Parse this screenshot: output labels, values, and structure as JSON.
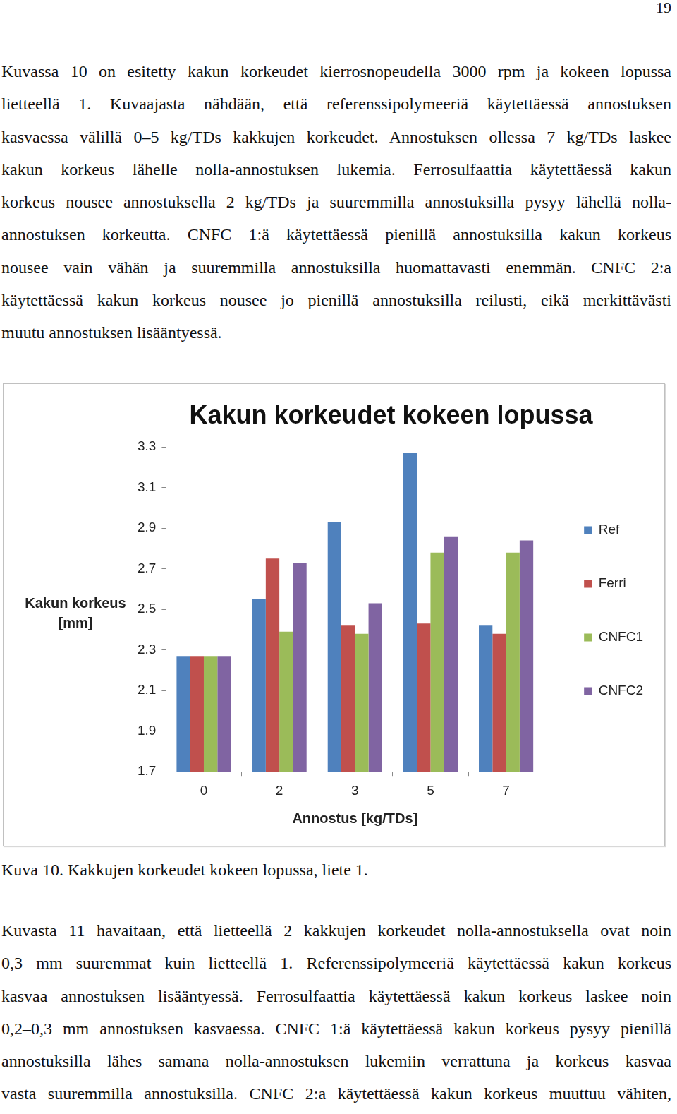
{
  "page_number": "19",
  "text_before": [
    "Kuvassa 10 on esitetty kakun korkeudet kierrosnopeudella 3000 rpm ja kokeen lopussa",
    "lietteellä 1. Kuvaajasta nähdään, että referenssipolymeeriä käytettäessä annostuksen",
    "kasvaessa välillä 0–5 kg/TDs kakkujen korkeudet. Annostuksen ollessa 7 kg/TDs laskee",
    "kakun korkeus lähelle nolla-annostuksen lukemia. Ferrosulfaattia käytettäessä kakun",
    "korkeus nousee annostuksella 2 kg/TDs ja suuremmilla annostuksilla pysyy lähellä nolla-",
    "annostuksen korkeutta. CNFC 1:ä käytettäessä pienillä annostuksilla kakun korkeus",
    "nousee vain vähän ja suuremmilla annostuksilla huomattavasti enemmän. CNFC 2:a",
    "käytettäessä kakun korkeus nousee jo pienillä annostuksilla reilusti, eikä merkittävästi",
    "muutu annostuksen lisääntyessä."
  ],
  "chart_data": {
    "type": "bar",
    "title": "Kakun korkeudet kokeen lopussa",
    "x_label": "Annostus [kg/TDs]",
    "y_label": "Kakun korkeus [mm]",
    "categories": [
      "0",
      "2",
      "3",
      "5",
      "7"
    ],
    "series": [
      {
        "name": "Ref",
        "color": "#4f81bd",
        "values": [
          2.27,
          2.55,
          2.93,
          3.27,
          2.42
        ]
      },
      {
        "name": "Ferri",
        "color": "#c0504d",
        "values": [
          2.27,
          2.75,
          2.42,
          2.43,
          2.38
        ]
      },
      {
        "name": "CNFC1",
        "color": "#9bbb59",
        "values": [
          2.27,
          2.39,
          2.38,
          2.78,
          2.78
        ]
      },
      {
        "name": "CNFC2",
        "color": "#8064a2",
        "values": [
          2.27,
          2.73,
          2.53,
          2.86,
          2.84
        ]
      }
    ],
    "ylim": [
      1.7,
      3.3
    ],
    "yticks": [
      1.7,
      1.9,
      2.1,
      2.3,
      2.5,
      2.7,
      2.9,
      3.1,
      3.3
    ],
    "grid": false,
    "legend": "right"
  },
  "caption": "Kuva 10. Kakkujen korkeudet kokeen lopussa, liete 1.",
  "text_after": [
    "Kuvasta 11 havaitaan, että lietteellä 2 kakkujen korkeudet nolla-annostuksella ovat noin",
    "0,3 mm suuremmat kuin lietteellä 1. Referenssipolymeeriä käytettäessä kakun korkeus",
    "kasvaa annostuksen lisääntyessä. Ferrosulfaattia käytettäessä kakun korkeus laskee noin",
    "0,2–0,3 mm annostuksen kasvaessa. CNFC 1:ä käytettäessä kakun korkeus pysyy pienillä",
    "annostuksilla lähes samana nolla-annostuksen lukemiin verrattuna ja korkeus kasvaa",
    "vasta suuremmilla annostuksilla. CNFC 2:a käytettäessä kakun korkeus muuttuu vähiten,"
  ]
}
